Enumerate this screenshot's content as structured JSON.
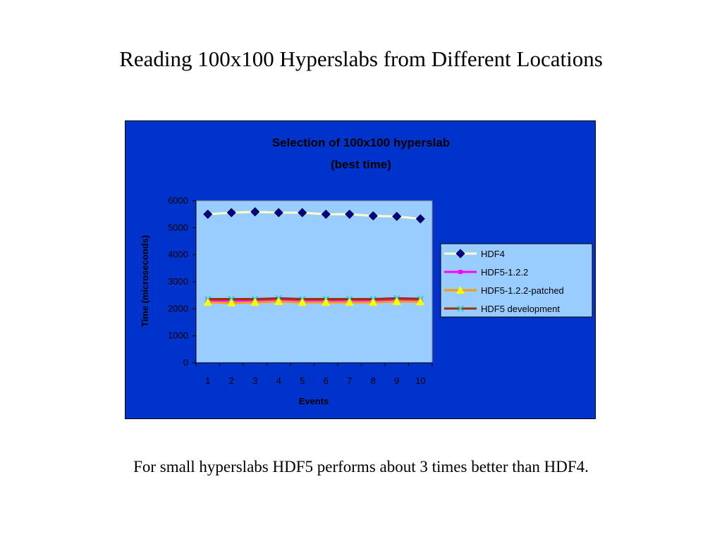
{
  "slide": {
    "title": "Reading 100x100 Hyperslabs from Different Locations",
    "caption": "For small hyperslabs HDF5 performs about 3 times better than HDF4."
  },
  "colors": {
    "chart_area_bg": "#0033cc",
    "plot_area_bg": "#99ccff",
    "legend_bg": "#99ccff",
    "hdf4_line": "#ffffcc",
    "hdf4_marker": "#000080",
    "hdf5_122_line": "#ff00ff",
    "hdf5_122_patched_line": "#ff9900",
    "hdf5_122_patched_marker": "#ffff00",
    "hdf5_dev_line": "#993300",
    "hdf5_dev_marker": "#33cccc"
  },
  "chart_data": {
    "type": "line",
    "title": "Selection of 100x100 hyperslab",
    "subtitle": "(best time)",
    "xlabel": "Events",
    "ylabel": "Time (microseconds)",
    "categories": [
      "1",
      "2",
      "3",
      "4",
      "5",
      "6",
      "7",
      "8",
      "9",
      "10"
    ],
    "ylim": [
      0,
      6000
    ],
    "yticks": [
      "0",
      "1000",
      "2000",
      "3000",
      "4000",
      "5000",
      "6000"
    ],
    "grid": false,
    "legend_position": "right",
    "series": [
      {
        "name": "HDF4",
        "values": [
          5500,
          5560,
          5590,
          5560,
          5560,
          5500,
          5500,
          5440,
          5420,
          5330
        ],
        "color": "#ffffcc",
        "marker": "diamond",
        "marker_color": "#000080"
      },
      {
        "name": "HDF5-1.2.2",
        "values": [
          2300,
          2300,
          2300,
          2320,
          2300,
          2300,
          2300,
          2300,
          2320,
          2300
        ],
        "color": "#ff00ff",
        "marker": "square",
        "marker_color": "#ff00ff"
      },
      {
        "name": "HDF5-1.2.2-patched",
        "values": [
          2240,
          2220,
          2240,
          2270,
          2240,
          2240,
          2240,
          2240,
          2270,
          2260
        ],
        "color": "#ff9900",
        "marker": "triangle",
        "marker_color": "#ffff00"
      },
      {
        "name": "HDF5 development",
        "values": [
          2360,
          2360,
          2360,
          2390,
          2360,
          2360,
          2360,
          2360,
          2390,
          2370
        ],
        "color": "#993300",
        "marker": "x",
        "marker_color": "#33cccc"
      }
    ]
  }
}
